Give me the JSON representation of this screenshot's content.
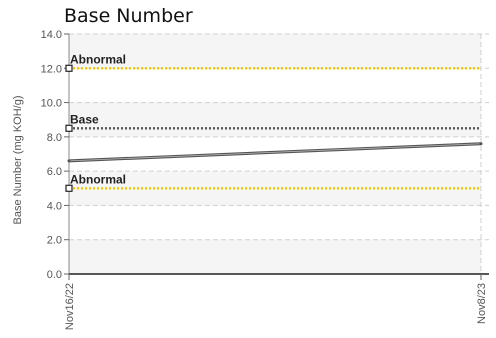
{
  "chart_data": {
    "type": "line",
    "title": "Base Number",
    "ylabel": "Base Number (mg KOH/g)",
    "xlabel": "",
    "ylim": [
      0,
      14
    ],
    "yticks": [
      "0.0",
      "2.0",
      "4.0",
      "6.0",
      "8.0",
      "10.0",
      "12.0",
      "14.0"
    ],
    "grid": true,
    "x": [
      "Nov16/22",
      "Nov8/23"
    ],
    "series": [
      {
        "values": [
          6.6,
          7.6
        ],
        "color": "#555555"
      }
    ],
    "reference_lines": [
      {
        "label": "Abnormal",
        "value": 12.0,
        "color": "#f2c500"
      },
      {
        "label": "Base",
        "value": 8.5,
        "color": "#555555"
      },
      {
        "label": "Abnormal",
        "value": 5.0,
        "color": "#f2c500"
      }
    ]
  }
}
